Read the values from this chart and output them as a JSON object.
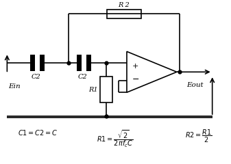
{
  "bg_color": "#ffffff",
  "line_color": "#000000",
  "lw": 1.2,
  "formula1": "$C1 = C2 = C$",
  "formula2": "$R1 = \\dfrac{\\sqrt{2}}{2\\pi f_c C}$",
  "formula3": "$R2 = \\dfrac{R1}{2}$",
  "label_ein": "Ein",
  "label_eout": "Eout",
  "label_c2a": "C2",
  "label_c2b": "C2",
  "label_r1": "R1",
  "label_r2": "R 2"
}
